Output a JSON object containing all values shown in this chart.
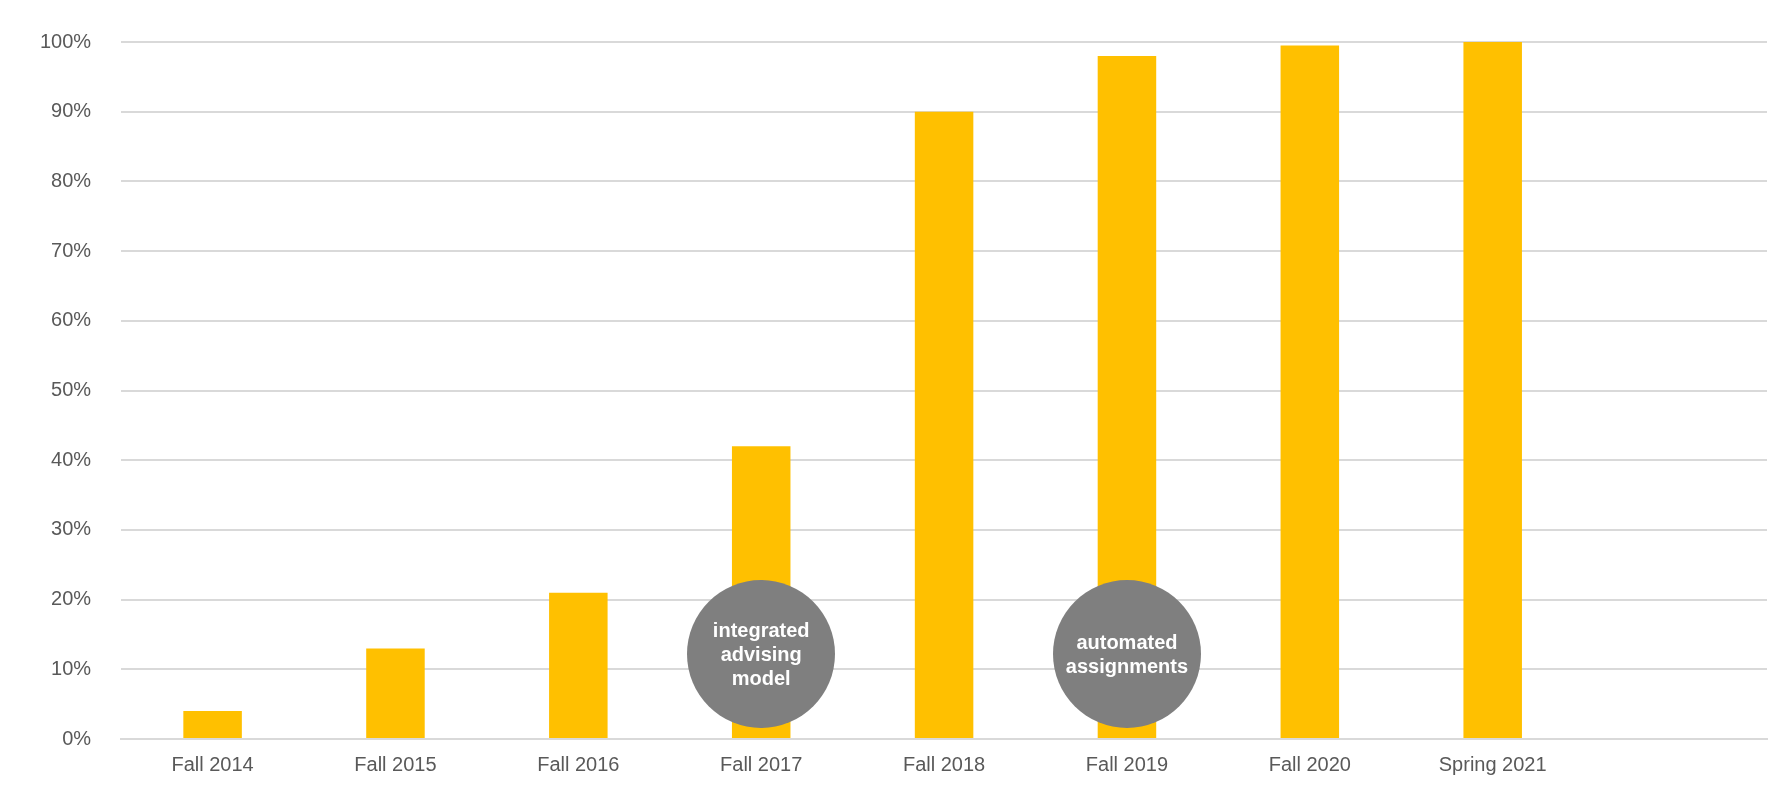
{
  "chart_data": {
    "type": "bar",
    "categories": [
      "Fall 2014",
      "Fall 2015",
      "Fall 2016",
      "Fall 2017",
      "Fall 2018",
      "Fall 2019",
      "Fall 2020",
      "Spring 2021",
      null
    ],
    "values": [
      4,
      13,
      21,
      42,
      90,
      98,
      99.5,
      100,
      null
    ],
    "color": "#ffc000",
    "ylim": [
      0,
      100
    ],
    "yticks": [
      {
        "value": 0,
        "label": "0%"
      },
      {
        "value": 10,
        "label": "10%"
      },
      {
        "value": 20,
        "label": "20%"
      },
      {
        "value": 30,
        "label": "30%"
      },
      {
        "value": 40,
        "label": "40%"
      },
      {
        "value": 50,
        "label": "50%"
      },
      {
        "value": 60,
        "label": "60%"
      },
      {
        "value": 70,
        "label": "70%"
      },
      {
        "value": 80,
        "label": "80%"
      },
      {
        "value": 90,
        "label": "90%"
      },
      {
        "value": 100,
        "label": "100%"
      }
    ],
    "grid": "y",
    "legend": false,
    "annotations": [
      "integrated advising model",
      "automated assignments"
    ]
  }
}
